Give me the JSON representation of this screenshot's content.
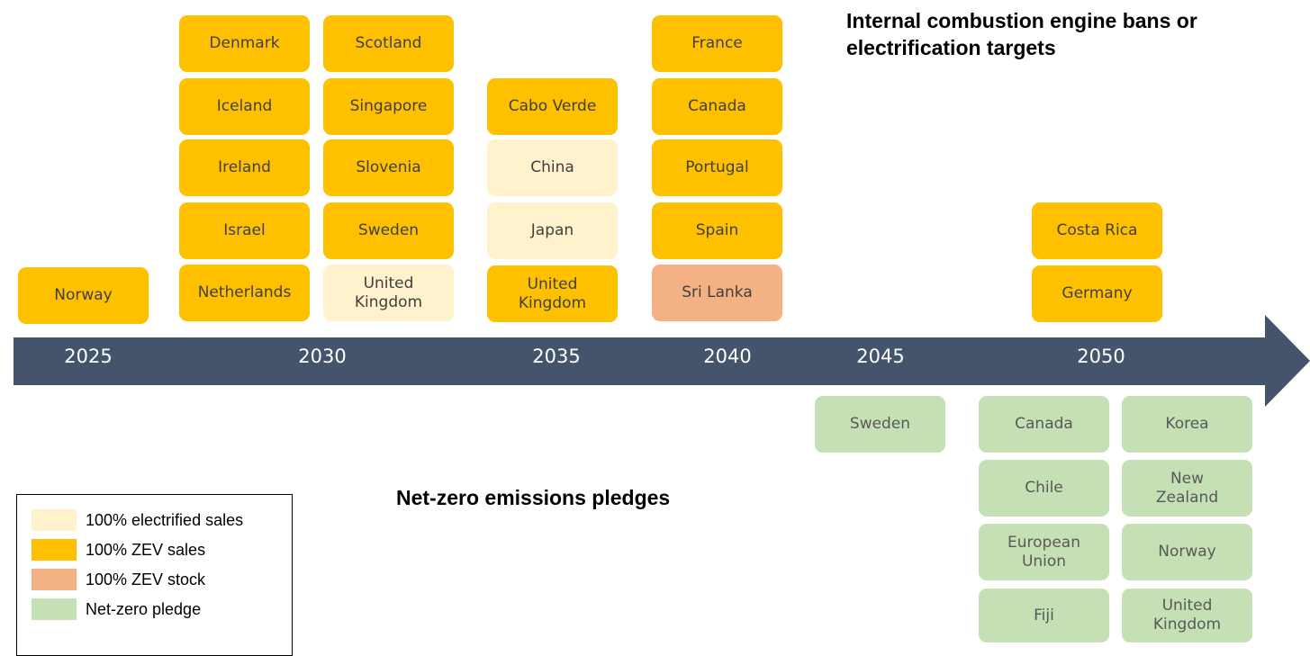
{
  "title": "Internal combustion engine bans or electrification targets",
  "pledges_title": "Net-zero emissions pledges",
  "years": [
    "2025",
    "2030",
    "2035",
    "2040",
    "2045",
    "2050"
  ],
  "legend": [
    {
      "label": "100% electrified sales",
      "color": "#fff2cc",
      "items": [
        "United Kingdom",
        "China",
        "Japan"
      ]
    },
    {
      "label": "100% ZEV sales",
      "color": "#ffc000",
      "items": [
        "Norway",
        "Denmark",
        "Iceland",
        "Ireland",
        "Israel",
        "Netherlands",
        "Scotland",
        "Singapore",
        "Slovenia",
        "Sweden",
        "Cabo Verde",
        "United Kingdom",
        "France",
        "Canada",
        "Portugal",
        "Spain",
        "Costa Rica",
        "Germany"
      ]
    },
    {
      "label": "100% ZEV stock",
      "color": "#f4b183",
      "items": [
        "Sri Lanka"
      ]
    },
    {
      "label": "Net-zero pledge",
      "color": "#c5e0b4",
      "items": [
        "Sweden",
        "Canada",
        "Chile",
        "European Union",
        "Fiji",
        "Korea",
        "New Zealand",
        "Norway",
        "United Kingdom"
      ]
    }
  ]
}
